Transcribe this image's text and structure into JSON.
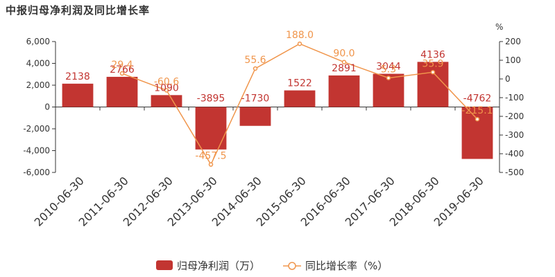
{
  "title": "中报归母净利润及同比增长率",
  "chart_data": {
    "type": "bar",
    "categories": [
      "2010-06-30",
      "2011-06-30",
      "2012-06-30",
      "2013-06-30",
      "2014-06-30",
      "2015-06-30",
      "2016-06-30",
      "2017-06-30",
      "2018-06-30",
      "2019-06-30"
    ],
    "series": [
      {
        "name": "归母净利润（万）",
        "type": "bar",
        "axis": "left",
        "color": "#c23531",
        "values": [
          2138,
          2766,
          1090,
          -3895,
          -1730,
          1522,
          2891,
          3044,
          4136,
          -4762
        ],
        "labels": [
          "2138",
          "2766",
          "1090",
          "-3895",
          "-1730",
          "1522",
          "2891",
          "3044",
          "4136",
          "-4762"
        ]
      },
      {
        "name": "同比增长率（%）",
        "type": "line",
        "axis": "right",
        "color": "#f0954b",
        "values": [
          null,
          29.4,
          -60.6,
          -457.5,
          55.6,
          188.0,
          90.0,
          5.3,
          35.9,
          -215.1
        ],
        "labels": [
          "",
          "29.4",
          "-60.6",
          "-457.5",
          "55.6",
          "188.0",
          "90.0",
          "5.3",
          "35.9",
          "-215.1"
        ]
      }
    ],
    "y_left": {
      "ylim": [
        -6000,
        6000
      ],
      "ticks": [
        "-6,000",
        "-4,000",
        "-2,000",
        "0",
        "2,000",
        "4,000",
        "6,000"
      ],
      "tick_values": [
        -6000,
        -4000,
        -2000,
        0,
        2000,
        4000,
        6000
      ]
    },
    "y_right": {
      "label": "%",
      "ylim": [
        -500,
        200
      ],
      "ticks": [
        "-500",
        "-400",
        "-300",
        "-200",
        "-100",
        "0",
        "100",
        "200"
      ],
      "tick_values": [
        -500,
        -400,
        -300,
        -200,
        -100,
        0,
        100,
        200
      ]
    },
    "grid": false,
    "legend_position": "bottom"
  }
}
